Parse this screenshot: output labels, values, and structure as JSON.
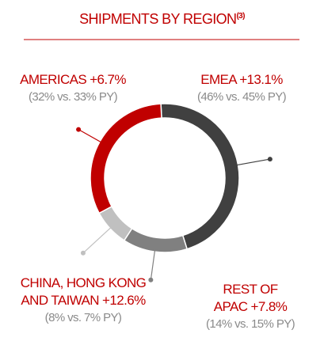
{
  "chart_data": {
    "type": "donut",
    "title": "SHIPMENTS BY REGION",
    "title_note": "(3)",
    "categories": [
      "EMEA +13.1%",
      "REST OF APAC +7.8%",
      "CHINA, HONG KONG AND TAIWAN +12.6%",
      "AMERICAS +6.7%"
    ],
    "values": [
      46,
      14,
      8,
      32
    ],
    "value_labels": [
      "(46% vs. 45% PY)",
      "(14% vs. 15% PY)",
      "(8% vs. 7% PY)",
      "(32% vs. 33% PY)"
    ],
    "colors": [
      "#404040",
      "#808080",
      "#c0c0c0",
      "#c00000"
    ]
  }
}
